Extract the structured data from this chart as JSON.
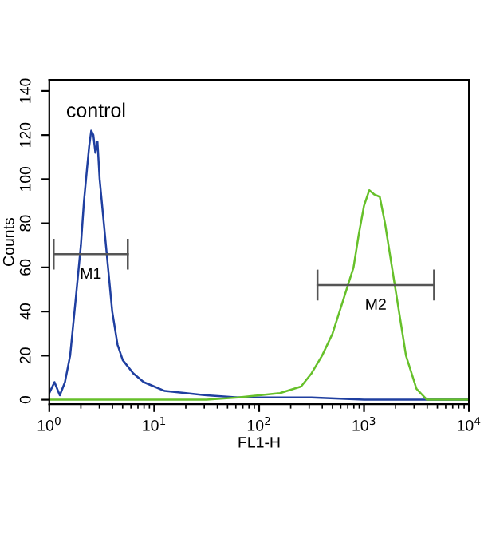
{
  "chart_data": {
    "type": "line",
    "xlabel": "FL1-H",
    "ylabel": "Counts",
    "annotations": [
      "control"
    ],
    "log": "x",
    "xlim": [
      1,
      10000
    ],
    "ylim": [
      -2,
      145
    ],
    "xticks": [
      {
        "value": 1,
        "label": "10$^{0}$"
      },
      {
        "value": 10,
        "label": "10$^{1}$"
      },
      {
        "value": 100,
        "label": "10$^{2}$"
      },
      {
        "value": 1000,
        "label": "10$^{3}$"
      },
      {
        "value": 10000,
        "label": "10$^{4}$"
      }
    ],
    "yticks": [
      0,
      20,
      40,
      60,
      80,
      100,
      120,
      140
    ],
    "grid": false,
    "legend": false,
    "marker": "none",
    "line_style": "solid",
    "series": [
      {
        "color": "#1f3fa0",
        "x": [
          1,
          1.12,
          1.26,
          1.41,
          1.58,
          1.78,
          2.0,
          2.14,
          2.29,
          2.4,
          2.51,
          2.63,
          2.75,
          2.88,
          3.02,
          3.31,
          3.63,
          3.98,
          4.47,
          5.01,
          5.62,
          6.31,
          7.94,
          10,
          12.6,
          20,
          31.6,
          63,
          100,
          316,
          1000,
          3162,
          10000
        ],
        "values": [
          3,
          8,
          2,
          8,
          20,
          45,
          70,
          90,
          105,
          115,
          122,
          120,
          112,
          117,
          100,
          80,
          60,
          40,
          25,
          18,
          15,
          12,
          8,
          6,
          4,
          3,
          2,
          1,
          1,
          1,
          0,
          0,
          0
        ]
      },
      {
        "color": "#66c02a",
        "x": [
          1,
          31.6,
          63,
          100,
          158,
          251,
          316,
          398,
          501,
          631,
          794,
          891,
          1000,
          1122,
          1259,
          1413,
          1585,
          1995,
          2512,
          3162,
          3981,
          10000
        ],
        "values": [
          0,
          0,
          1,
          2,
          3,
          6,
          12,
          20,
          30,
          45,
          60,
          75,
          88,
          95,
          93,
          92,
          80,
          50,
          20,
          5,
          0,
          0
        ]
      },
      {
        "name": "M1",
        "color": "#555555",
        "x": [
          1.1,
          5.6
        ],
        "values": [
          66,
          66
        ],
        "errors": [
          7,
          7
        ]
      },
      {
        "name": "M2",
        "color": "#555555",
        "x": [
          360,
          4650
        ],
        "values": [
          52,
          52
        ],
        "errors": [
          7,
          7
        ]
      }
    ]
  }
}
